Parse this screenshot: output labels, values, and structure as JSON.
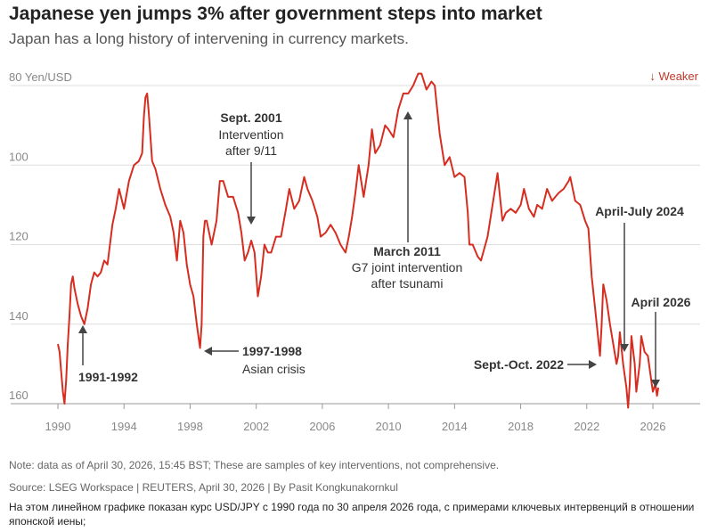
{
  "chart_data": {
    "type": "line",
    "title": "Japanese yen jumps 3% after government steps into market",
    "subtitle": "Japan has a long history of intervening in currency markets.",
    "ylabel": "Yen/USD",
    "y_inverted": true,
    "ylim": [
      80,
      162
    ],
    "xlim": [
      1989.7,
      2026.8
    ],
    "y_ticks": [
      80,
      100,
      120,
      140,
      160
    ],
    "y_tick_labels": [
      "80 Yen/USD",
      "100",
      "120",
      "140",
      "160"
    ],
    "x_ticks": [
      1990,
      1994,
      1998,
      2002,
      2006,
      2010,
      2014,
      2018,
      2022,
      2026
    ],
    "weaker_label": "↓ Weaker",
    "series": [
      {
        "color": "#d62d20",
        "points": [
          [
            1990.0,
            145
          ],
          [
            1990.1,
            147
          ],
          [
            1990.2,
            152
          ],
          [
            1990.3,
            157
          ],
          [
            1990.4,
            160
          ],
          [
            1990.5,
            154
          ],
          [
            1990.6,
            145
          ],
          [
            1990.7,
            138
          ],
          [
            1990.8,
            130
          ],
          [
            1990.9,
            128
          ],
          [
            1991.0,
            131
          ],
          [
            1991.2,
            135
          ],
          [
            1991.4,
            138
          ],
          [
            1991.6,
            140
          ],
          [
            1991.8,
            136
          ],
          [
            1992.0,
            130
          ],
          [
            1992.2,
            127
          ],
          [
            1992.4,
            128
          ],
          [
            1992.6,
            127
          ],
          [
            1992.8,
            124
          ],
          [
            1993.0,
            125
          ],
          [
            1993.3,
            115
          ],
          [
            1993.5,
            111
          ],
          [
            1993.7,
            106
          ],
          [
            1994.0,
            111
          ],
          [
            1994.3,
            104
          ],
          [
            1994.6,
            100
          ],
          [
            1994.9,
            99
          ],
          [
            1995.1,
            97
          ],
          [
            1995.2,
            88
          ],
          [
            1995.3,
            83
          ],
          [
            1995.4,
            82
          ],
          [
            1995.5,
            87
          ],
          [
            1995.7,
            99
          ],
          [
            1995.9,
            101
          ],
          [
            1996.2,
            106
          ],
          [
            1996.5,
            110
          ],
          [
            1996.8,
            113
          ],
          [
            1997.0,
            117
          ],
          [
            1997.2,
            124
          ],
          [
            1997.4,
            114
          ],
          [
            1997.6,
            117
          ],
          [
            1997.8,
            125
          ],
          [
            1998.0,
            130
          ],
          [
            1998.2,
            133
          ],
          [
            1998.4,
            140
          ],
          [
            1998.6,
            146
          ],
          [
            1998.7,
            140
          ],
          [
            1998.8,
            118
          ],
          [
            1998.9,
            114
          ],
          [
            1999.0,
            114
          ],
          [
            1999.3,
            120
          ],
          [
            1999.6,
            114
          ],
          [
            1999.8,
            104
          ],
          [
            2000.0,
            104
          ],
          [
            2000.3,
            108
          ],
          [
            2000.6,
            108
          ],
          [
            2000.9,
            112
          ],
          [
            2001.1,
            117
          ],
          [
            2001.3,
            124
          ],
          [
            2001.5,
            122
          ],
          [
            2001.7,
            119
          ],
          [
            2001.9,
            122
          ],
          [
            2002.1,
            133
          ],
          [
            2002.3,
            128
          ],
          [
            2002.5,
            120
          ],
          [
            2002.7,
            122
          ],
          [
            2002.9,
            122
          ],
          [
            2003.2,
            118
          ],
          [
            2003.5,
            118
          ],
          [
            2003.8,
            111
          ],
          [
            2004.0,
            106
          ],
          [
            2004.3,
            111
          ],
          [
            2004.6,
            109
          ],
          [
            2004.9,
            103
          ],
          [
            2005.1,
            106
          ],
          [
            2005.4,
            109
          ],
          [
            2005.7,
            113
          ],
          [
            2005.9,
            118
          ],
          [
            2006.2,
            117
          ],
          [
            2006.5,
            115
          ],
          [
            2006.8,
            117
          ],
          [
            2007.1,
            120
          ],
          [
            2007.4,
            122
          ],
          [
            2007.6,
            118
          ],
          [
            2007.8,
            113
          ],
          [
            2008.0,
            107
          ],
          [
            2008.2,
            100
          ],
          [
            2008.5,
            108
          ],
          [
            2008.8,
            100
          ],
          [
            2009.0,
            91
          ],
          [
            2009.2,
            97
          ],
          [
            2009.5,
            95
          ],
          [
            2009.8,
            90
          ],
          [
            2010.0,
            91
          ],
          [
            2010.3,
            93
          ],
          [
            2010.6,
            86
          ],
          [
            2010.9,
            82
          ],
          [
            2011.2,
            82
          ],
          [
            2011.5,
            80
          ],
          [
            2011.8,
            77
          ],
          [
            2012.0,
            77
          ],
          [
            2012.3,
            81
          ],
          [
            2012.6,
            79
          ],
          [
            2012.8,
            80
          ],
          [
            2012.9,
            84
          ],
          [
            2013.1,
            92
          ],
          [
            2013.4,
            100
          ],
          [
            2013.7,
            98
          ],
          [
            2014.0,
            103
          ],
          [
            2014.3,
            102
          ],
          [
            2014.6,
            103
          ],
          [
            2014.8,
            112
          ],
          [
            2014.9,
            120
          ],
          [
            2015.1,
            120
          ],
          [
            2015.4,
            123
          ],
          [
            2015.6,
            124
          ],
          [
            2015.8,
            121
          ],
          [
            2016.0,
            118
          ],
          [
            2016.3,
            110
          ],
          [
            2016.6,
            102
          ],
          [
            2016.9,
            114
          ],
          [
            2017.1,
            112
          ],
          [
            2017.4,
            111
          ],
          [
            2017.7,
            112
          ],
          [
            2018.0,
            110
          ],
          [
            2018.2,
            106
          ],
          [
            2018.5,
            111
          ],
          [
            2018.8,
            113
          ],
          [
            2019.0,
            110
          ],
          [
            2019.3,
            111
          ],
          [
            2019.6,
            106
          ],
          [
            2019.9,
            109
          ],
          [
            2020.1,
            108
          ],
          [
            2020.3,
            107
          ],
          [
            2020.6,
            106
          ],
          [
            2020.9,
            104
          ],
          [
            2021.0,
            103
          ],
          [
            2021.3,
            109
          ],
          [
            2021.6,
            110
          ],
          [
            2021.9,
            114
          ],
          [
            2022.1,
            116
          ],
          [
            2022.3,
            128
          ],
          [
            2022.5,
            136
          ],
          [
            2022.7,
            144
          ],
          [
            2022.8,
            148
          ],
          [
            2022.9,
            140
          ],
          [
            2023.0,
            130
          ],
          [
            2023.2,
            134
          ],
          [
            2023.4,
            140
          ],
          [
            2023.6,
            145
          ],
          [
            2023.8,
            150
          ],
          [
            2023.9,
            148
          ],
          [
            2024.0,
            142
          ],
          [
            2024.2,
            150
          ],
          [
            2024.4,
            156
          ],
          [
            2024.5,
            161
          ],
          [
            2024.6,
            155
          ],
          [
            2024.7,
            143
          ],
          [
            2024.9,
            150
          ],
          [
            2025.0,
            157
          ],
          [
            2025.2,
            150
          ],
          [
            2025.3,
            143
          ],
          [
            2025.5,
            147
          ],
          [
            2025.7,
            148
          ],
          [
            2025.9,
            154
          ],
          [
            2026.0,
            157
          ],
          [
            2026.15,
            155
          ],
          [
            2026.25,
            158
          ],
          [
            2026.33,
            156
          ]
        ]
      }
    ],
    "annotations": [
      {
        "bold": "1991-1992",
        "text": []
      },
      {
        "bold": "Sept. 2001",
        "text": [
          "Intervention",
          "after 9/11"
        ]
      },
      {
        "bold": "1997-1998",
        "text": [
          "Asian crisis"
        ]
      },
      {
        "bold": "March 2011",
        "text": [
          "G7 joint intervention",
          "after tsunami"
        ]
      },
      {
        "bold": "April-July 2024",
        "text": []
      },
      {
        "bold": "April 2026",
        "text": []
      },
      {
        "bold": "Sept.-Oct. 2022",
        "text": []
      }
    ]
  },
  "footer": {
    "note": "Note: data as of April 30, 2026, 15:45 BST; These are samples of key interventions, not comprehensive.",
    "source": "Source: LSEG Workspace | REUTERS, April 30, 2026 | By Pasit Kongkunakornkul",
    "description": "На этом линейном графике показан курс USD/JPY с 1990 года по 30 апреля 2026 года, с примерами ключевых интервенций в отношении японской иены;"
  }
}
